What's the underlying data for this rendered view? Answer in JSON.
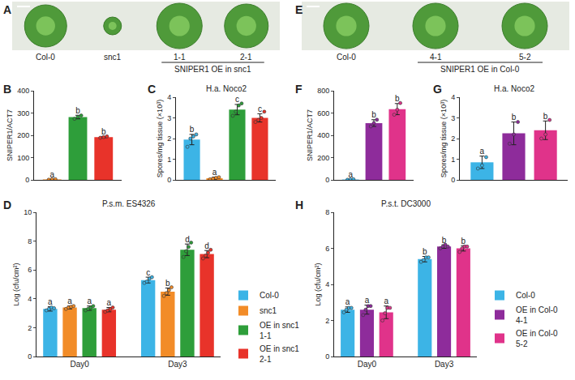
{
  "photo_panels": [
    {
      "panel": "A",
      "plants": [
        "Col-0",
        "snc1",
        "1-1",
        "2-1"
      ],
      "group": {
        "label": "SNIPER1 OE in snc1",
        "plants": [
          "1-1",
          "2-1"
        ]
      }
    },
    {
      "panel": "E",
      "plants": [
        "Col-0",
        "4-1",
        "5-2"
      ],
      "group": {
        "label": "SNIPER1 OE in Col-0",
        "plants": [
          "4-1",
          "5-2"
        ]
      }
    }
  ],
  "chart_data": [
    {
      "panel": "B",
      "type": "bar",
      "y_label": "SNIPER1/ACT7",
      "categories": [
        null
      ],
      "ylim": [
        0,
        400
      ],
      "yticks": [
        0,
        100,
        200,
        300,
        400
      ],
      "grid": false,
      "series": [
        {
          "name": "snc1",
          "color": "#f28c28",
          "values": [
            2
          ],
          "error": [
            1
          ],
          "points": [
            [
              1,
              2,
              3
            ]
          ],
          "letters": [
            "a"
          ]
        },
        {
          "name": "OE in snc1 1-1",
          "color": "#2e9e3a",
          "values": [
            282
          ],
          "error": [
            8
          ],
          "points": [
            [
              274,
              283,
              289
            ]
          ],
          "letters": [
            "b"
          ]
        },
        {
          "name": "OE in snc1 2-1",
          "color": "#e8332a",
          "values": [
            192
          ],
          "error": [
            3
          ],
          "points": [
            [
              189,
              192,
              195
            ]
          ],
          "letters": [
            "b"
          ]
        }
      ]
    },
    {
      "panel": "C",
      "type": "bar",
      "title": "H.a. Noco2",
      "y_label": "Spores/mg tissue (×10³)",
      "categories": [
        null
      ],
      "ylim": [
        0,
        4
      ],
      "yticks": [
        0,
        1,
        2,
        3,
        4
      ],
      "grid": false,
      "series": [
        {
          "name": "Col-0",
          "color": "#3cb4e6",
          "values": [
            1.95
          ],
          "error": [
            0.25
          ],
          "points": [
            [
              1.6,
              2.0,
              2.1,
              2.2
            ]
          ],
          "letters": [
            "b"
          ]
        },
        {
          "name": "snc1",
          "color": "#f28c28",
          "values": [
            0.08
          ],
          "error": [
            0.05
          ],
          "points": [
            [
              0.03,
              0.06,
              0.1,
              0.13
            ]
          ],
          "letters": [
            "a"
          ]
        },
        {
          "name": "OE in snc1 1-1",
          "color": "#2e9e3a",
          "values": [
            3.4
          ],
          "error": [
            0.25
          ],
          "points": [
            [
              3.1,
              3.3,
              3.6,
              3.7
            ]
          ],
          "letters": [
            "c"
          ]
        },
        {
          "name": "OE in snc1 2-1",
          "color": "#e8332a",
          "values": [
            3.0
          ],
          "error": [
            0.2
          ],
          "points": [
            [
              2.8,
              2.9,
              3.0,
              3.3
            ]
          ],
          "letters": [
            "c"
          ]
        }
      ]
    },
    {
      "panel": "D",
      "type": "bar",
      "title": "P.s.m. ES4326",
      "y_label": "Log (cfu/cm²)",
      "categories": [
        "Day0",
        "Day3"
      ],
      "ylim": [
        0,
        10
      ],
      "yticks": [
        0,
        2,
        4,
        6,
        8,
        10
      ],
      "grid": false,
      "legend": "right",
      "series": [
        {
          "name": "Col-0",
          "color": "#3cb4e6",
          "values": [
            3.3,
            5.3
          ],
          "error": [
            0.15,
            0.2
          ],
          "points": [
            [
              3.2,
              3.3,
              3.4,
              3.35
            ],
            [
              5.1,
              5.2,
              5.4,
              5.5
            ]
          ],
          "letters": [
            "a",
            "c"
          ]
        },
        {
          "name": "snc1",
          "color": "#f28c28",
          "values": [
            3.4,
            4.5
          ],
          "error": [
            0.1,
            0.25
          ],
          "points": [
            [
              3.3,
              3.4,
              3.45,
              3.5
            ],
            [
              4.2,
              4.4,
              4.6,
              4.8
            ]
          ],
          "letters": [
            "a",
            "b"
          ]
        },
        {
          "name": "OE in snc1 1-1",
          "color": "#2e9e3a",
          "values": [
            3.35,
            7.4
          ],
          "error": [
            0.15,
            0.4
          ],
          "points": [
            [
              3.2,
              3.3,
              3.4,
              3.5
            ],
            [
              6.9,
              7.3,
              7.6,
              7.9
            ]
          ],
          "letters": [
            "a",
            "d"
          ]
        },
        {
          "name": "OE in snc1 2-1",
          "color": "#e8332a",
          "values": [
            3.25,
            7.1
          ],
          "error": [
            0.15,
            0.25
          ],
          "points": [
            [
              3.1,
              3.2,
              3.3,
              3.4
            ],
            [
              6.8,
              7.0,
              7.2,
              7.4
            ]
          ],
          "letters": [
            "a",
            "d"
          ]
        }
      ]
    },
    {
      "panel": "F",
      "type": "bar",
      "y_label": "SNIPER1/ACT7",
      "categories": [
        null
      ],
      "ylim": [
        0,
        800
      ],
      "yticks": [
        0,
        200,
        400,
        600,
        800
      ],
      "grid": false,
      "series": [
        {
          "name": "Col-0",
          "color": "#3cb4e6",
          "values": [
            3
          ],
          "error": [
            2
          ],
          "points": [
            [
              1,
              3,
              5
            ]
          ],
          "letters": [
            "a"
          ]
        },
        {
          "name": "OE in Col-0 4-1",
          "color": "#8e2c9b",
          "values": [
            510
          ],
          "error": [
            30
          ],
          "points": [
            [
              480,
              510,
              540
            ]
          ],
          "letters": [
            "b"
          ]
        },
        {
          "name": "OE in Col-0 5-2",
          "color": "#e0338a",
          "values": [
            635
          ],
          "error": [
            50
          ],
          "points": [
            [
              585,
              630,
              690
            ]
          ],
          "letters": [
            "b"
          ]
        }
      ]
    },
    {
      "panel": "G",
      "type": "bar",
      "title": "H.a. Noco2",
      "y_label": "Spores/mg tissue (×10³)",
      "categories": [
        null
      ],
      "ylim": [
        0,
        4
      ],
      "yticks": [
        0,
        1,
        2,
        3,
        4
      ],
      "grid": false,
      "series": [
        {
          "name": "Col-0",
          "color": "#3cb4e6",
          "values": [
            0.85
          ],
          "error": [
            0.3
          ],
          "points": [
            [
              0.55,
              0.7,
              1.1
            ]
          ],
          "letters": [
            "a"
          ]
        },
        {
          "name": "OE in Col-0 4-1",
          "color": "#8e2c9b",
          "values": [
            2.25
          ],
          "error": [
            0.55
          ],
          "points": [
            [
              1.75,
              2.2,
              2.8
            ]
          ],
          "letters": [
            "b"
          ]
        },
        {
          "name": "OE in Col-0 5-2",
          "color": "#e0338a",
          "values": [
            2.4
          ],
          "error": [
            0.45
          ],
          "points": [
            [
              2.0,
              2.2,
              2.9
            ]
          ],
          "letters": [
            "b"
          ]
        }
      ]
    },
    {
      "panel": "H",
      "type": "bar",
      "title": "P.s.t. DC3000",
      "y_label": "Log (cfu/cm²)",
      "categories": [
        "Day0",
        "Day3"
      ],
      "ylim": [
        0,
        8
      ],
      "yticks": [
        0,
        2,
        4,
        6,
        8
      ],
      "grid": false,
      "legend": "right",
      "series": [
        {
          "name": "Col-0",
          "color": "#3cb4e6",
          "values": [
            2.6,
            5.4
          ],
          "error": [
            0.15,
            0.15
          ],
          "points": [
            [
              2.45,
              2.6,
              2.7,
              2.7
            ],
            [
              5.25,
              5.35,
              5.5,
              5.5
            ]
          ],
          "letters": [
            "a",
            "b"
          ]
        },
        {
          "name": "OE in Col-0 4-1",
          "color": "#8e2c9b",
          "values": [
            2.6,
            6.1
          ],
          "error": [
            0.25,
            0.1
          ],
          "points": [
            [
              2.3,
              2.6,
              2.8,
              2.8
            ],
            [
              6.0,
              6.1,
              6.2,
              6.1
            ]
          ],
          "letters": [
            "a",
            "b"
          ]
        },
        {
          "name": "OE in Col-0 5-2",
          "color": "#e0338a",
          "values": [
            2.45,
            6.0
          ],
          "error": [
            0.35,
            0.15
          ],
          "points": [
            [
              2.0,
              2.4,
              2.7,
              2.7
            ],
            [
              5.8,
              6.0,
              6.1,
              6.1
            ]
          ],
          "letters": [
            "a",
            "b"
          ]
        }
      ]
    }
  ]
}
